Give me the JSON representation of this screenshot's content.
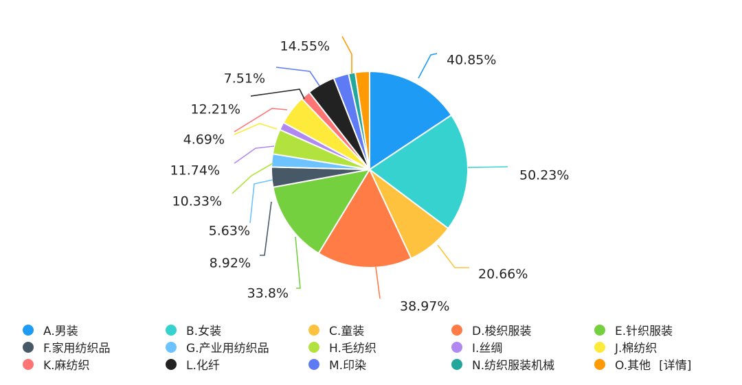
{
  "chart_data": {
    "type": "pie",
    "title": "",
    "legend_position": "bottom",
    "labels_shown": "percent",
    "slices": [
      {
        "key": "A",
        "label": "A.男装",
        "pct_label": "40.85%",
        "value": 40.85,
        "color": "#1e9bf5"
      },
      {
        "key": "B",
        "label": "B.女装",
        "pct_label": "50.23%",
        "value": 50.23,
        "color": "#35d2cf"
      },
      {
        "key": "C",
        "label": "C.童装",
        "pct_label": "20.66%",
        "value": 20.66,
        "color": "#ffc23e"
      },
      {
        "key": "D",
        "label": "D.梭织服装",
        "pct_label": "38.97%",
        "value": 38.97,
        "color": "#ff7c46"
      },
      {
        "key": "E",
        "label": "E.针织服装",
        "pct_label": "33.8%",
        "value": 33.8,
        "color": "#74d03f"
      },
      {
        "key": "F",
        "label": "F.家用纺织品",
        "pct_label": "8.92%",
        "value": 8.92,
        "color": "#475867"
      },
      {
        "key": "G",
        "label": "G.产业用纺织品",
        "pct_label": "5.63%",
        "value": 5.63,
        "color": "#6cc3ff"
      },
      {
        "key": "H",
        "label": "H.毛纺织",
        "pct_label": "10.33%",
        "value": 10.33,
        "color": "#b2e23e"
      },
      {
        "key": "I",
        "label": "I.丝绸",
        "pct_label": "11.74%",
        "value": 11.74,
        "color": "#b088f0"
      },
      {
        "key": "J",
        "label": "J.棉纺织",
        "pct_label": "4.69%",
        "value": 4.69,
        "color": "#fdea3a"
      },
      {
        "key": "K",
        "label": "K.麻纺织",
        "pct_label": "12.21%",
        "value": 12.21,
        "color": "#ff7474"
      },
      {
        "key": "L",
        "label": "L.化纤",
        "pct_label": "7.51%",
        "value": 7.51,
        "color": "#222222"
      },
      {
        "key": "M",
        "label": "M.印染",
        "pct_label": null,
        "value": null,
        "color": "#5e7bf5"
      },
      {
        "key": "N",
        "label": "N.纺织服装机械",
        "pct_label": null,
        "value": null,
        "color": "#23a79c"
      },
      {
        "key": "O",
        "label": "O.其他",
        "pct_label": "14.55%",
        "value": 14.55,
        "color": "#ff9a05"
      }
    ]
  },
  "legend": {
    "detail_link": "[详情]"
  }
}
